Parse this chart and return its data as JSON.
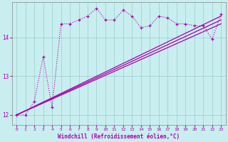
{
  "xlabel": "Windchill (Refroidissement éolien,°C)",
  "background_color": "#c8eef0",
  "line_color": "#aa00aa",
  "grid_color": "#99cccc",
  "xlim": [
    -0.5,
    23.5
  ],
  "ylim": [
    11.75,
    14.9
  ],
  "yticks": [
    12,
    13,
    14
  ],
  "xticks": [
    0,
    1,
    2,
    3,
    4,
    5,
    6,
    7,
    8,
    9,
    10,
    11,
    12,
    13,
    14,
    15,
    16,
    17,
    18,
    19,
    20,
    21,
    22,
    23
  ],
  "line1_x": [
    0,
    23
  ],
  "line1_y": [
    12.0,
    14.55
  ],
  "line2_x": [
    0,
    23
  ],
  "line2_y": [
    12.0,
    14.45
  ],
  "line3_x": [
    0,
    23
  ],
  "line3_y": [
    12.0,
    14.35
  ],
  "main_x": [
    0,
    1,
    2,
    3,
    4,
    5,
    6,
    7,
    8,
    9,
    10,
    11,
    12,
    13,
    14,
    15,
    16,
    17,
    18,
    19,
    20,
    21,
    22,
    23
  ],
  "main_y": [
    12.0,
    12.0,
    12.35,
    13.5,
    12.2,
    14.35,
    14.35,
    14.45,
    14.55,
    14.75,
    14.45,
    14.45,
    14.7,
    14.55,
    14.25,
    14.3,
    14.55,
    14.5,
    14.35,
    14.35,
    14.3,
    14.3,
    13.95,
    14.6
  ]
}
